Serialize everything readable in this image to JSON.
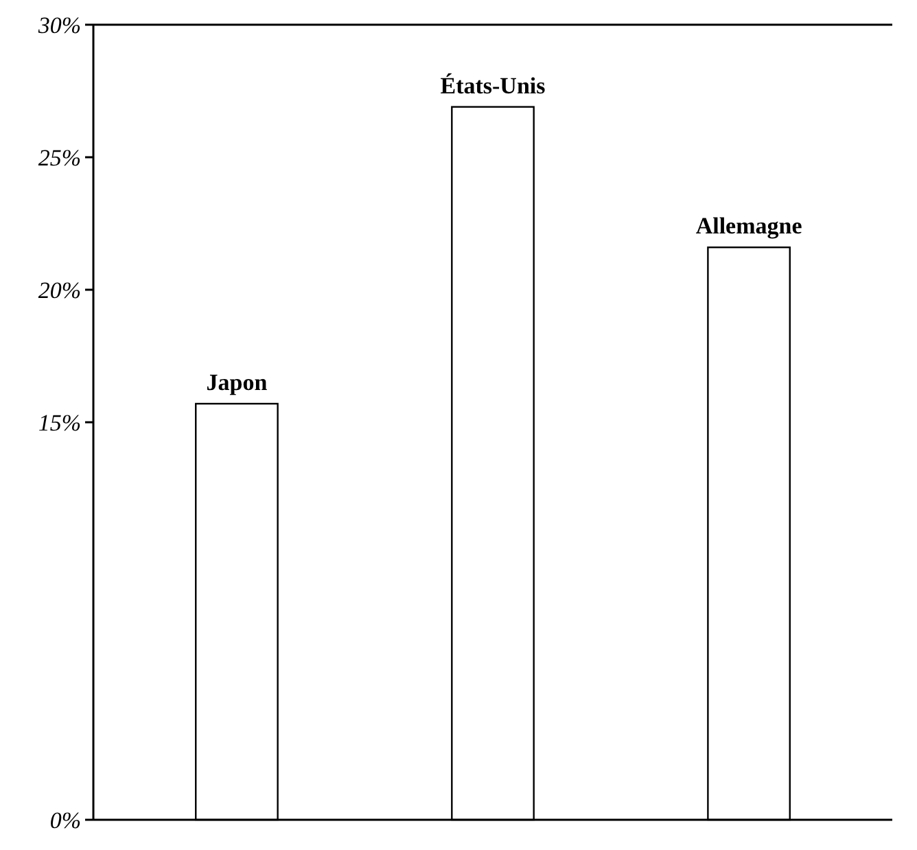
{
  "chart_data": {
    "type": "bar",
    "categories": [
      "Japon",
      "États-Unis",
      "Allemagne"
    ],
    "values": [
      15.7,
      26.9,
      21.6
    ],
    "color": "#ffffff",
    "ylim": [
      0,
      30
    ],
    "yticks": [
      {
        "value": 0,
        "label": "0%"
      },
      {
        "value": 15,
        "label": "15%"
      },
      {
        "value": 20,
        "label": "20%"
      },
      {
        "value": 25,
        "label": "25%"
      },
      {
        "value": 30,
        "label": "30%"
      }
    ],
    "grid": false
  }
}
